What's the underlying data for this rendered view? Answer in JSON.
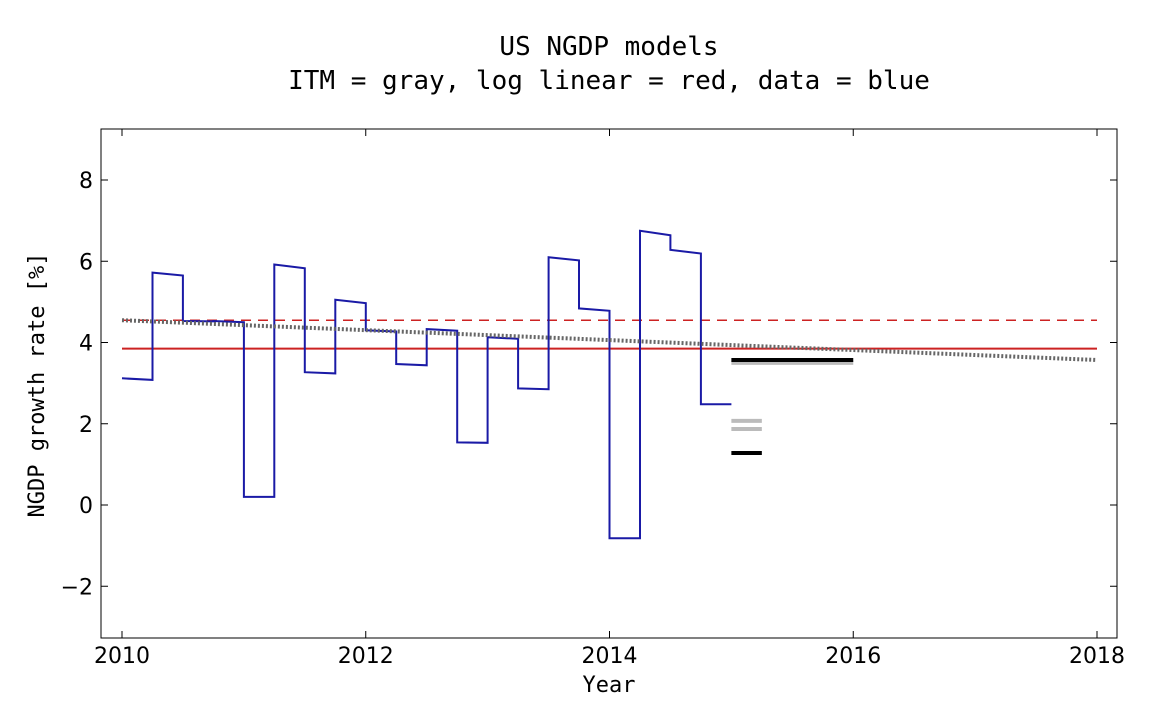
{
  "chart_data": {
    "type": "line",
    "title": "US NGDP models",
    "subtitle": "ITM = gray, log linear = red, data = blue",
    "xlabel": "Year",
    "ylabel": "NGDP growth rate [%]",
    "xlim": [
      2010,
      2018
    ],
    "ylim": [
      -3.2,
      9.2
    ],
    "xticks": [
      2010,
      2012,
      2014,
      2016,
      2018
    ],
    "yticks": [
      -2,
      0,
      2,
      4,
      6,
      8
    ],
    "grid": false,
    "colors": {
      "data": "#1a1aa6",
      "log_linear": "#cc2222",
      "itm": "#666666",
      "forecast_black": "#000000",
      "forecast_gray": "#bbbbbb"
    },
    "series": [
      {
        "key": "data",
        "style": "step",
        "points": [
          [
            2010.0,
            3.12
          ],
          [
            2010.25,
            3.08
          ],
          [
            2010.25,
            5.72
          ],
          [
            2010.5,
            5.65
          ],
          [
            2010.5,
            4.53
          ],
          [
            2010.75,
            4.52
          ],
          [
            2010.75,
            4.53
          ],
          [
            2011.0,
            4.5
          ],
          [
            2011.0,
            0.2
          ],
          [
            2011.25,
            0.2
          ],
          [
            2011.25,
            5.92
          ],
          [
            2011.5,
            5.83
          ],
          [
            2011.5,
            3.27
          ],
          [
            2011.75,
            3.24
          ],
          [
            2011.75,
            5.05
          ],
          [
            2012.0,
            4.97
          ],
          [
            2012.0,
            4.3
          ],
          [
            2012.25,
            4.27
          ],
          [
            2012.25,
            3.47
          ],
          [
            2012.5,
            3.44
          ],
          [
            2012.5,
            4.33
          ],
          [
            2012.75,
            4.29
          ],
          [
            2012.75,
            1.54
          ],
          [
            2013.0,
            1.53
          ],
          [
            2013.0,
            4.13
          ],
          [
            2013.25,
            4.09
          ],
          [
            2013.25,
            2.87
          ],
          [
            2013.5,
            2.85
          ],
          [
            2013.5,
            6.1
          ],
          [
            2013.75,
            6.02
          ],
          [
            2013.75,
            4.84
          ],
          [
            2014.0,
            4.78
          ],
          [
            2014.0,
            -0.82
          ],
          [
            2014.25,
            -0.82
          ],
          [
            2014.25,
            6.75
          ],
          [
            2014.5,
            6.64
          ],
          [
            2014.5,
            6.28
          ],
          [
            2014.75,
            6.19
          ],
          [
            2014.75,
            2.48
          ],
          [
            2015.0,
            2.48
          ]
        ]
      },
      {
        "key": "log_linear_solid",
        "style": "solid",
        "points": [
          [
            2010.0,
            3.85
          ],
          [
            2018.0,
            3.85
          ]
        ]
      },
      {
        "key": "log_linear_dashed",
        "style": "dashed",
        "points": [
          [
            2010.0,
            4.55
          ],
          [
            2018.0,
            4.55
          ]
        ]
      },
      {
        "key": "itm",
        "style": "dotted",
        "points": [
          [
            2010.0,
            4.55
          ],
          [
            2018.0,
            3.57
          ]
        ]
      }
    ],
    "forecast_bars": [
      {
        "x": [
          2015.0,
          2016.0
        ],
        "y": 3.57,
        "color": "black"
      },
      {
        "x": [
          2015.0,
          2016.0
        ],
        "y": 3.5,
        "color": "gray"
      },
      {
        "x": [
          2015.0,
          2015.25
        ],
        "y": 2.07,
        "color": "gray"
      },
      {
        "x": [
          2015.0,
          2015.25
        ],
        "y": 1.87,
        "color": "gray"
      },
      {
        "x": [
          2015.0,
          2015.25
        ],
        "y": 1.28,
        "color": "black"
      }
    ]
  }
}
